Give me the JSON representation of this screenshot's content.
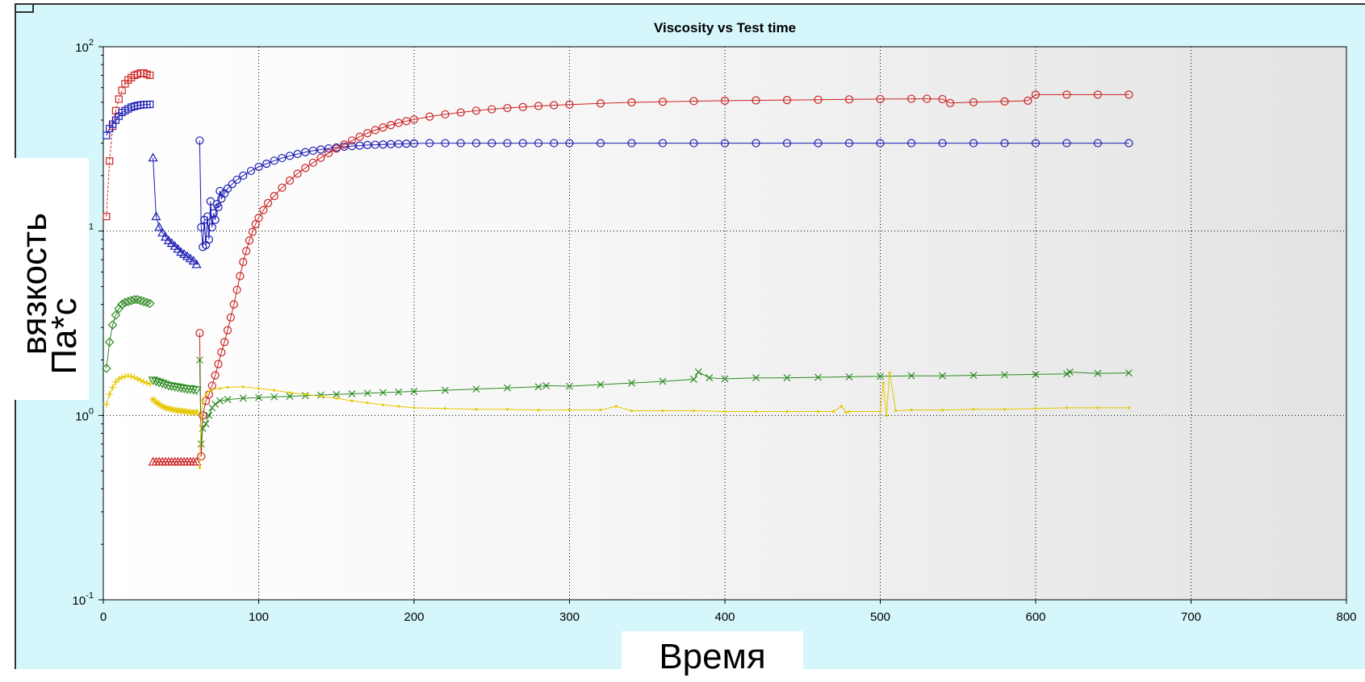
{
  "chart_data": {
    "type": "scatter",
    "title": "Viscosity vs Test time",
    "xlabel": "Время",
    "ylabel": "вязкость",
    "yunit": "Па*с",
    "xlim": [
      0,
      800
    ],
    "ylim": [
      0.1,
      100
    ],
    "yscale": "log",
    "grid": true,
    "xticks": [
      0,
      100,
      200,
      300,
      400,
      500,
      600,
      700,
      800
    ],
    "yticks": [
      {
        "value": 0.1,
        "base": "10",
        "exp": "-1"
      },
      {
        "value": 1,
        "base": "10",
        "exp": "0"
      },
      {
        "value": 10,
        "base": "10",
        "exp": "1"
      },
      {
        "value": 100,
        "base": "10",
        "exp": "2"
      }
    ],
    "series": [
      {
        "color": "#cc2222",
        "marker": "square",
        "line": "dash",
        "x": [
          2,
          4,
          6,
          8,
          10,
          12,
          14,
          16,
          18,
          20,
          22,
          24,
          26,
          28,
          30
        ],
        "y": [
          12,
          24,
          37,
          45,
          52,
          58,
          63,
          66,
          68,
          70,
          71,
          72,
          72,
          71,
          70
        ]
      },
      {
        "color": "#1a1ab4",
        "marker": "square",
        "line": "solid",
        "x": [
          2,
          4,
          6,
          8,
          10,
          12,
          14,
          16,
          18,
          20,
          22,
          24,
          26,
          28,
          30
        ],
        "y": [
          33,
          36,
          38,
          40,
          42,
          44,
          45,
          46,
          47,
          47.5,
          48,
          48.3,
          48.5,
          48.6,
          48.7
        ]
      },
      {
        "color": "#1a1ab4",
        "marker": "triangle",
        "line": "solid",
        "x": [
          32,
          34,
          36,
          38,
          40,
          42,
          44,
          46,
          48,
          50,
          52,
          54,
          56,
          58,
          60
        ],
        "y": [
          25,
          12,
          10.5,
          9.8,
          9.3,
          8.9,
          8.6,
          8.3,
          8.0,
          7.7,
          7.5,
          7.3,
          7.1,
          6.9,
          6.6
        ]
      },
      {
        "color": "#cc2222",
        "marker": "triangle",
        "line": "solid",
        "x": [
          32,
          34,
          36,
          38,
          40,
          42,
          44,
          46,
          48,
          50,
          52,
          54,
          56,
          58,
          60
        ],
        "y": [
          0.56,
          0.56,
          0.56,
          0.56,
          0.56,
          0.56,
          0.56,
          0.56,
          0.56,
          0.56,
          0.56,
          0.56,
          0.56,
          0.56,
          0.56
        ]
      },
      {
        "color": "#2e8b22",
        "marker": "diamond",
        "line": "solid",
        "x": [
          2,
          4,
          6,
          8,
          10,
          12,
          14,
          16,
          18,
          20,
          22,
          24,
          26,
          28,
          30
        ],
        "y": [
          1.8,
          2.5,
          3.1,
          3.5,
          3.8,
          4.0,
          4.1,
          4.15,
          4.2,
          4.25,
          4.25,
          4.2,
          4.15,
          4.1,
          4.05
        ]
      },
      {
        "color": "#2e8b22",
        "marker": "down-triangle",
        "line": "solid",
        "x": [
          32,
          34,
          36,
          38,
          40,
          42,
          44,
          46,
          48,
          50,
          52,
          54,
          56,
          58,
          60
        ],
        "y": [
          1.55,
          1.53,
          1.51,
          1.49,
          1.47,
          1.45,
          1.44,
          1.43,
          1.42,
          1.41,
          1.4,
          1.39,
          1.39,
          1.38,
          1.37
        ]
      },
      {
        "color": "#e6c800",
        "marker": "plus",
        "line": "solid",
        "x": [
          2,
          4,
          6,
          8,
          10,
          12,
          14,
          16,
          18,
          20,
          22,
          24,
          26,
          28,
          30
        ],
        "y": [
          1.15,
          1.3,
          1.42,
          1.52,
          1.58,
          1.61,
          1.63,
          1.64,
          1.63,
          1.61,
          1.58,
          1.55,
          1.52,
          1.5,
          1.48
        ]
      },
      {
        "color": "#e6c800",
        "marker": "star",
        "line": "solid",
        "x": [
          32,
          34,
          36,
          38,
          40,
          42,
          44,
          46,
          48,
          50,
          52,
          54,
          56,
          58,
          60
        ],
        "y": [
          1.22,
          1.18,
          1.15,
          1.12,
          1.1,
          1.09,
          1.08,
          1.07,
          1.06,
          1.06,
          1.05,
          1.05,
          1.04,
          1.04,
          1.04
        ]
      },
      {
        "color": "#1a1ab4",
        "marker": "circle",
        "line": "solid",
        "x": [
          62,
          63,
          64,
          65,
          66,
          67,
          68,
          69,
          70,
          71,
          72,
          73,
          74,
          75,
          76,
          78,
          80,
          83,
          86,
          90,
          95,
          100,
          105,
          110,
          115,
          120,
          125,
          130,
          135,
          140,
          145,
          150,
          155,
          160,
          165,
          170,
          175,
          180,
          185,
          190,
          195,
          200,
          210,
          220,
          230,
          240,
          250,
          260,
          270,
          280,
          290,
          300,
          320,
          340,
          360,
          380,
          400,
          420,
          440,
          460,
          480,
          500,
          520,
          540,
          560,
          580,
          600,
          620,
          640,
          660
        ],
        "y": [
          31,
          10.5,
          8.2,
          11.5,
          8.4,
          12,
          9.0,
          14.5,
          10.5,
          12.5,
          11.5,
          14,
          13.5,
          16.5,
          15,
          16,
          17,
          18,
          19,
          20,
          21.2,
          22.3,
          23.2,
          24.1,
          24.9,
          25.6,
          26.2,
          26.8,
          27.3,
          27.7,
          28.1,
          28.4,
          28.7,
          28.9,
          29.1,
          29.3,
          29.4,
          29.5,
          29.6,
          29.7,
          29.8,
          29.9,
          30,
          30,
          30,
          30,
          30,
          30,
          30,
          30,
          30,
          30,
          30,
          30,
          30,
          30,
          30,
          30,
          30,
          30,
          30,
          30,
          30,
          30,
          30,
          30,
          30,
          30,
          30,
          30
        ]
      },
      {
        "color": "#cc2222",
        "marker": "circle",
        "line": "solid",
        "x": [
          62,
          63,
          64,
          66,
          68,
          70,
          72,
          74,
          76,
          78,
          80,
          82,
          84,
          86,
          88,
          90,
          92,
          94,
          96,
          98,
          100,
          103,
          106,
          110,
          115,
          120,
          125,
          130,
          135,
          140,
          145,
          150,
          155,
          160,
          165,
          170,
          175,
          180,
          185,
          190,
          195,
          200,
          210,
          220,
          230,
          240,
          250,
          260,
          270,
          280,
          290,
          300,
          320,
          340,
          360,
          380,
          400,
          420,
          440,
          460,
          480,
          500,
          520,
          530,
          540,
          545,
          560,
          580,
          595,
          600,
          620,
          640,
          660
        ],
        "y": [
          2.8,
          0.6,
          1.0,
          1.2,
          1.3,
          1.45,
          1.65,
          1.9,
          2.2,
          2.5,
          2.9,
          3.4,
          4.0,
          4.8,
          5.7,
          6.8,
          7.8,
          8.9,
          9.9,
          10.9,
          11.8,
          13.0,
          14.2,
          15.5,
          17.2,
          18.8,
          20.5,
          22.0,
          23.5,
          25.0,
          26.5,
          28.0,
          29.5,
          31.0,
          32.5,
          34.0,
          35.3,
          36.5,
          37.6,
          38.6,
          39.5,
          40.3,
          41.8,
          43.0,
          44.0,
          45.0,
          45.8,
          46.5,
          47.1,
          47.7,
          48.2,
          48.6,
          49.3,
          49.9,
          50.3,
          50.7,
          51.0,
          51.2,
          51.4,
          51.6,
          51.8,
          52.0,
          52.2,
          52.2,
          52.0,
          49.5,
          50,
          50.5,
          51,
          55,
          55,
          55,
          55
        ]
      },
      {
        "color": "#2e8b22",
        "marker": "x",
        "line": "solid",
        "x": [
          62,
          63,
          64,
          66,
          68,
          70,
          72,
          75,
          80,
          90,
          100,
          110,
          120,
          130,
          140,
          150,
          160,
          170,
          180,
          190,
          200,
          220,
          240,
          260,
          280,
          285,
          300,
          320,
          340,
          360,
          380,
          383,
          390,
          400,
          420,
          440,
          460,
          480,
          500,
          520,
          540,
          560,
          580,
          600,
          620,
          622,
          640,
          660
        ],
        "y": [
          2.0,
          0.7,
          0.85,
          0.9,
          1.0,
          1.1,
          1.15,
          1.2,
          1.22,
          1.24,
          1.25,
          1.26,
          1.27,
          1.28,
          1.29,
          1.3,
          1.31,
          1.32,
          1.33,
          1.34,
          1.35,
          1.37,
          1.39,
          1.41,
          1.43,
          1.45,
          1.44,
          1.47,
          1.5,
          1.53,
          1.57,
          1.72,
          1.6,
          1.58,
          1.6,
          1.6,
          1.61,
          1.62,
          1.63,
          1.64,
          1.64,
          1.65,
          1.66,
          1.67,
          1.68,
          1.72,
          1.69,
          1.7
        ]
      },
      {
        "color": "#e6c800",
        "marker": "dot",
        "line": "solid",
        "x": [
          62,
          63,
          64,
          66,
          68,
          70,
          75,
          80,
          90,
          100,
          110,
          120,
          130,
          140,
          150,
          160,
          170,
          180,
          190,
          200,
          220,
          240,
          260,
          280,
          300,
          320,
          330,
          340,
          360,
          380,
          400,
          420,
          440,
          460,
          470,
          475,
          478,
          480,
          500,
          502,
          504,
          506,
          510,
          520,
          540,
          560,
          580,
          600,
          620,
          640,
          660
        ],
        "y": [
          0.52,
          1.0,
          1.2,
          1.3,
          1.35,
          1.38,
          1.4,
          1.42,
          1.43,
          1.4,
          1.37,
          1.33,
          1.3,
          1.27,
          1.24,
          1.2,
          1.17,
          1.14,
          1.12,
          1.1,
          1.09,
          1.08,
          1.08,
          1.07,
          1.07,
          1.07,
          1.12,
          1.06,
          1.06,
          1.06,
          1.05,
          1.05,
          1.05,
          1.05,
          1.05,
          1.12,
          1.04,
          1.05,
          1.05,
          1.5,
          1.0,
          1.7,
          1.06,
          1.07,
          1.07,
          1.08,
          1.08,
          1.09,
          1.1,
          1.1,
          1.1
        ]
      }
    ]
  }
}
